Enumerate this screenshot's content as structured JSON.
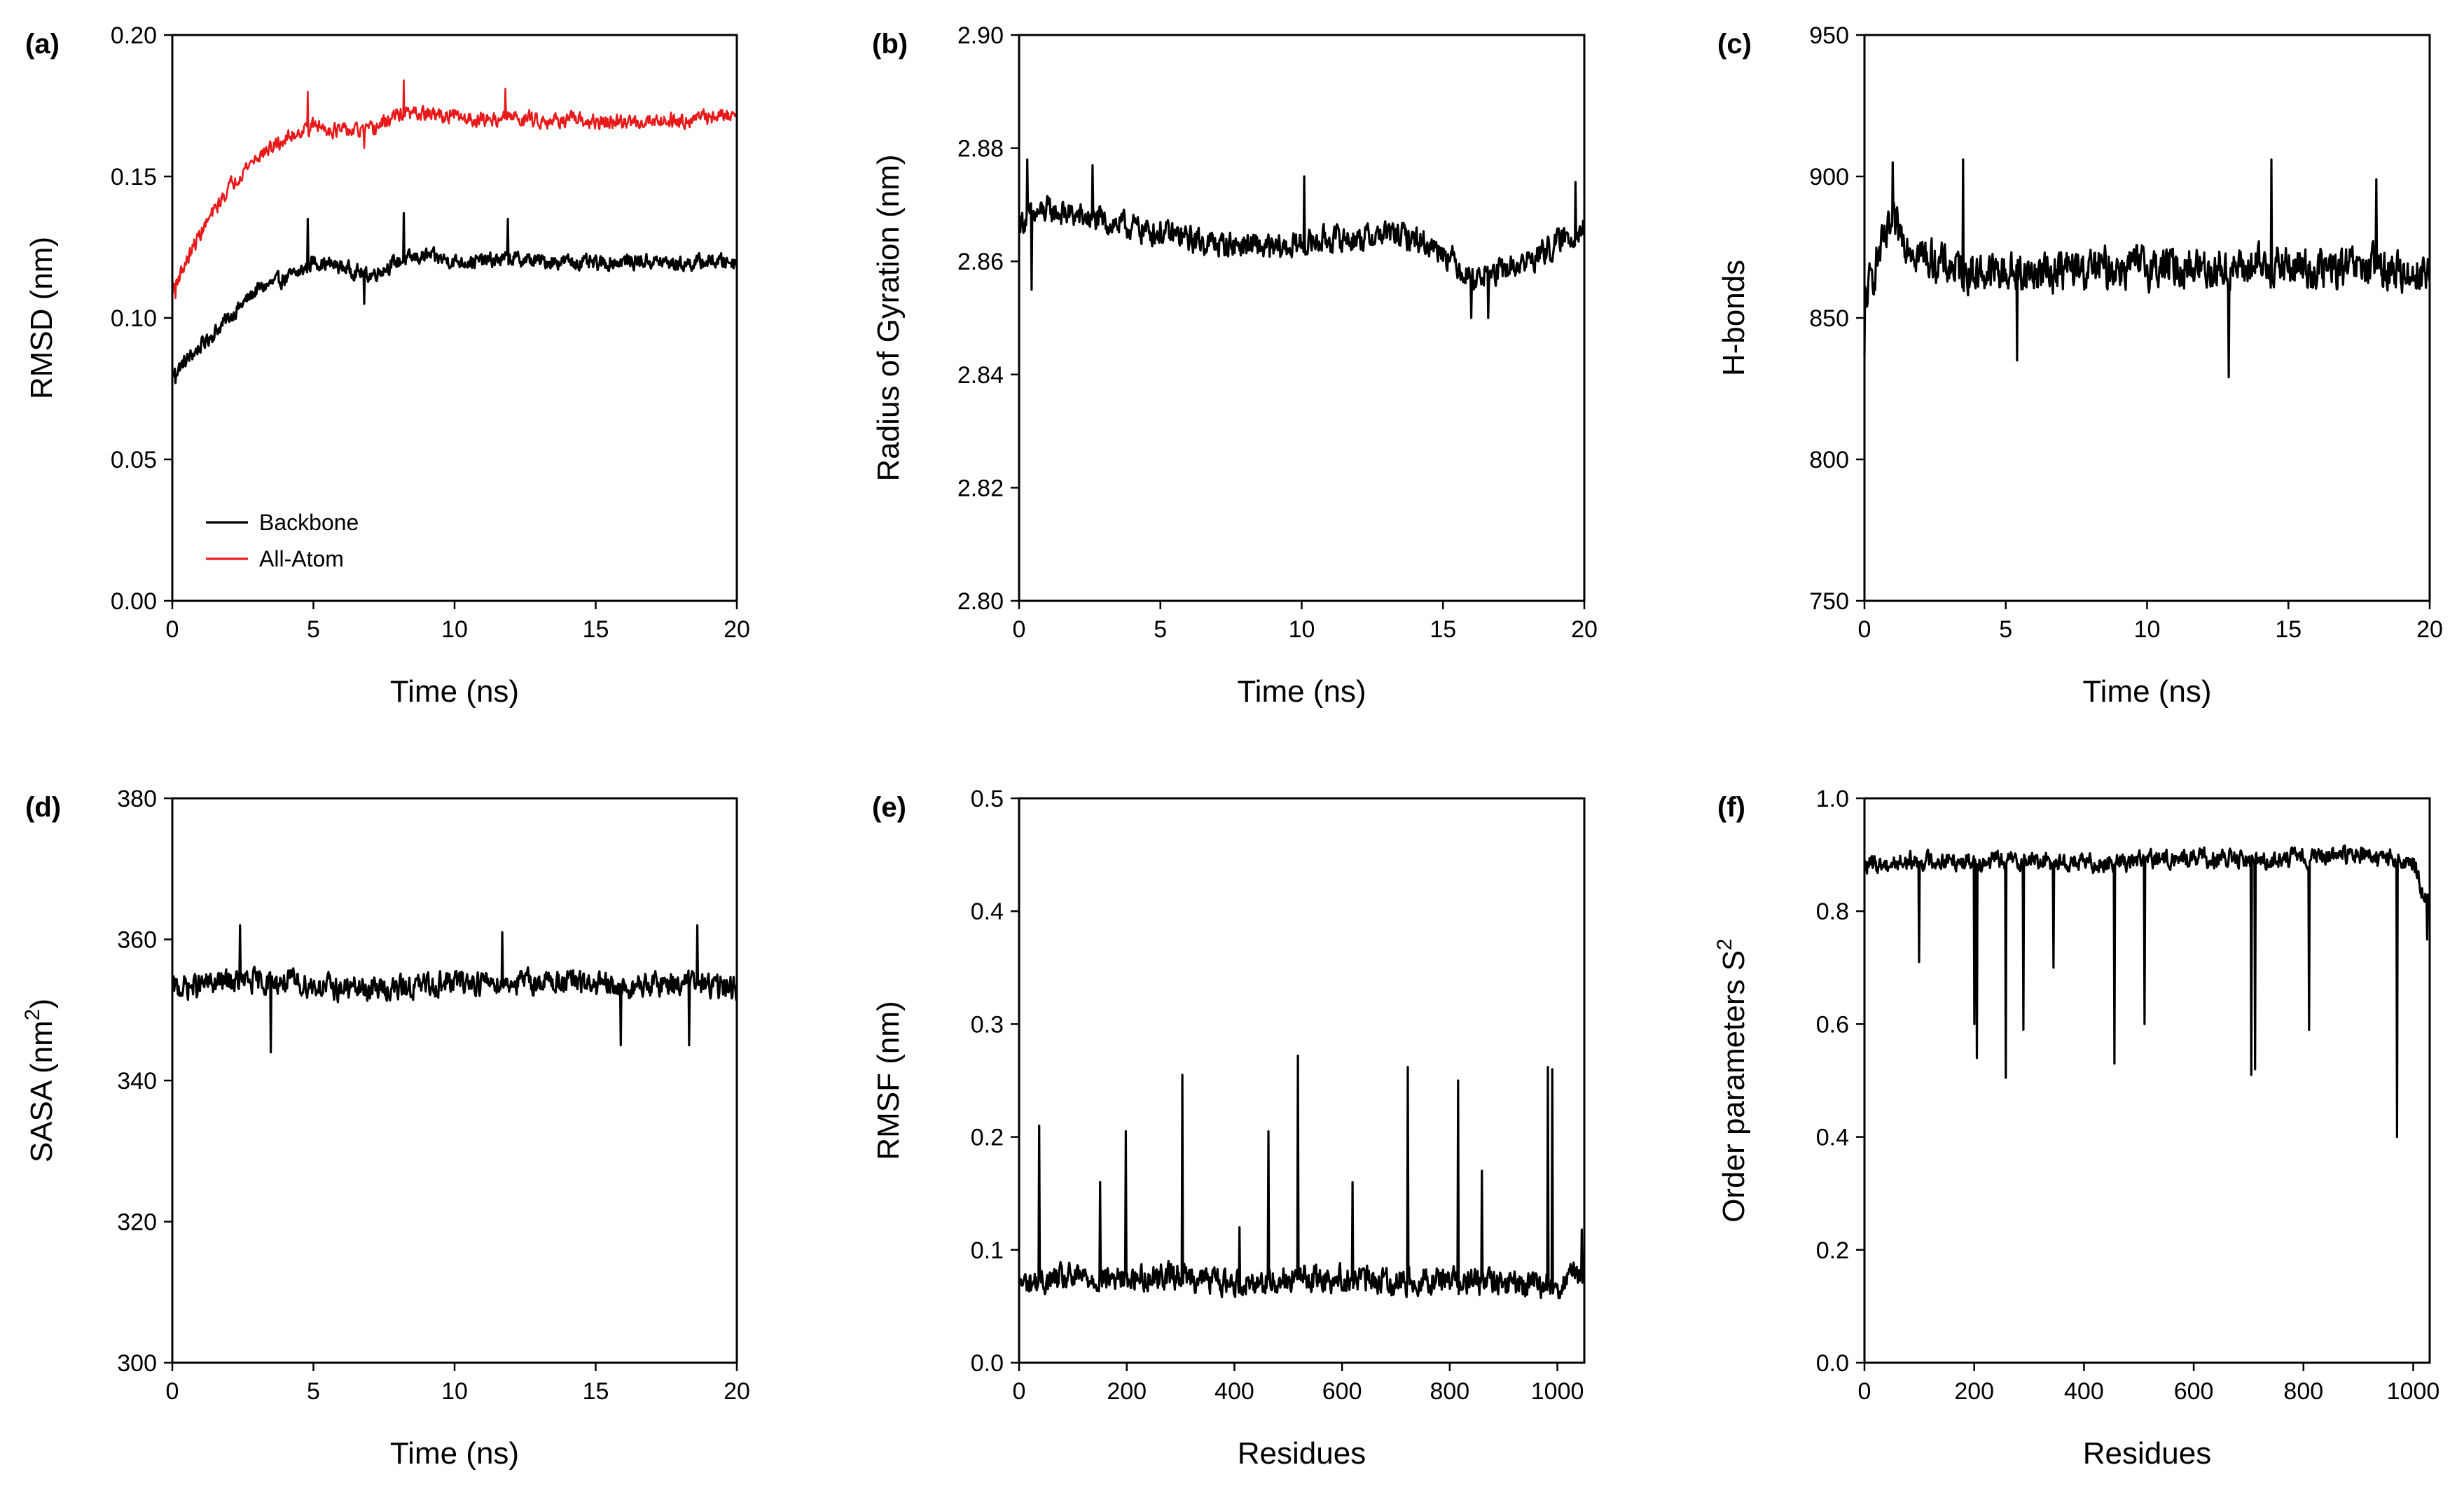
{
  "figure": {
    "panels": [
      "(a)",
      "(b)",
      "(c)",
      "(d)",
      "(e)",
      "(f)"
    ]
  },
  "chart_data": [
    {
      "id": "a",
      "panel_label": "(a)",
      "type": "line",
      "xlabel": "Time (ns)",
      "ylabel": "RMSD (nm)",
      "xlim": [
        0,
        20
      ],
      "ylim": [
        0.0,
        0.2
      ],
      "xticks": [
        0,
        5,
        10,
        15,
        20
      ],
      "xtick_labels": [
        "0",
        "5",
        "10",
        "15",
        "20"
      ],
      "yticks": [
        0.0,
        0.05,
        0.1,
        0.15,
        0.2
      ],
      "ytick_labels": [
        "0.00",
        "0.05",
        "0.10",
        "0.15",
        "0.20"
      ],
      "legend": {
        "placement": "lower-left",
        "entries": [
          "Backbone",
          "All-Atom"
        ]
      },
      "series": [
        {
          "name": "Backbone",
          "color": "#000000",
          "x": [
            0,
            0.5,
            1,
            1.5,
            2,
            2.5,
            3,
            3.5,
            4,
            4.5,
            5,
            6,
            7,
            8,
            9,
            10,
            11,
            12,
            13,
            14,
            15,
            16,
            17,
            18,
            19,
            20
          ],
          "y": [
            0.08,
            0.085,
            0.09,
            0.095,
            0.1,
            0.105,
            0.11,
            0.112,
            0.114,
            0.116,
            0.12,
            0.118,
            0.115,
            0.12,
            0.122,
            0.12,
            0.12,
            0.121,
            0.12,
            0.12,
            0.119,
            0.12,
            0.12,
            0.119,
            0.12,
            0.12
          ],
          "noise": 0.004,
          "peaks": [
            [
              4.8,
              0.135
            ],
            [
              8.2,
              0.137
            ],
            [
              11.9,
              0.135
            ],
            [
              1.5,
              0.093
            ],
            [
              0.1,
              0.077
            ],
            [
              6.8,
              0.105
            ]
          ]
        },
        {
          "name": "All-Atom",
          "color": "#e8191a",
          "x": [
            0,
            0.5,
            1,
            1.5,
            2,
            2.5,
            3,
            3.5,
            4,
            4.5,
            5,
            6,
            7,
            8,
            9,
            10,
            11,
            12,
            13,
            14,
            15,
            16,
            17,
            18,
            19,
            20
          ],
          "y": [
            0.11,
            0.12,
            0.13,
            0.138,
            0.146,
            0.152,
            0.157,
            0.16,
            0.163,
            0.166,
            0.168,
            0.166,
            0.166,
            0.172,
            0.172,
            0.171,
            0.17,
            0.171,
            0.17,
            0.17,
            0.169,
            0.169,
            0.17,
            0.17,
            0.171,
            0.172
          ],
          "noise": 0.004,
          "peaks": [
            [
              4.8,
              0.18
            ],
            [
              8.2,
              0.184
            ],
            [
              11.8,
              0.181
            ],
            [
              0.1,
              0.107
            ],
            [
              6.8,
              0.16
            ]
          ]
        }
      ]
    },
    {
      "id": "b",
      "panel_label": "(b)",
      "type": "line",
      "xlabel": "Time (ns)",
      "ylabel": "Radius of Gyration (nm)",
      "xlim": [
        0,
        20
      ],
      "ylim": [
        2.8,
        2.9
      ],
      "xticks": [
        0,
        5,
        10,
        15,
        20
      ],
      "xtick_labels": [
        "0",
        "5",
        "10",
        "15",
        "20"
      ],
      "yticks": [
        2.8,
        2.82,
        2.84,
        2.86,
        2.88,
        2.9
      ],
      "ytick_labels": [
        "2.80",
        "2.82",
        "2.84",
        "2.86",
        "2.88",
        "2.90"
      ],
      "series": [
        {
          "name": "Rg",
          "color": "#000000",
          "x": [
            0,
            1,
            2,
            3,
            4,
            5,
            6,
            7,
            8,
            9,
            10,
            11,
            12,
            13,
            14,
            15,
            16,
            17,
            18,
            19,
            20
          ],
          "y": [
            2.867,
            2.869,
            2.868,
            2.867,
            2.866,
            2.865,
            2.864,
            2.863,
            2.863,
            2.862,
            2.863,
            2.864,
            2.864,
            2.865,
            2.864,
            2.862,
            2.857,
            2.858,
            2.86,
            2.863,
            2.866
          ],
          "noise": 0.0035,
          "peaks": [
            [
              0.3,
              2.878
            ],
            [
              0.45,
              2.855
            ],
            [
              2.6,
              2.877
            ],
            [
              10.1,
              2.875
            ],
            [
              16.0,
              2.85
            ],
            [
              16.6,
              2.85
            ],
            [
              19.7,
              2.874
            ]
          ]
        }
      ]
    },
    {
      "id": "c",
      "panel_label": "(c)",
      "type": "line",
      "xlabel": "Time (ns)",
      "ylabel": "H-bonds",
      "xlim": [
        0,
        20
      ],
      "ylim": [
        750,
        950
      ],
      "xticks": [
        0,
        5,
        10,
        15,
        20
      ],
      "xtick_labels": [
        "0",
        "5",
        "10",
        "15",
        "20"
      ],
      "yticks": [
        750,
        800,
        850,
        900,
        950
      ],
      "ytick_labels": [
        "750",
        "800",
        "850",
        "900",
        "950"
      ],
      "series": [
        {
          "name": "H-bonds",
          "color": "#000000",
          "x": [
            0,
            0.5,
            1,
            1.5,
            2,
            3,
            4,
            5,
            6,
            7,
            8,
            9,
            10,
            11,
            12,
            13,
            14,
            15,
            16,
            17,
            18,
            19,
            20
          ],
          "y": [
            855,
            872,
            882,
            878,
            872,
            868,
            866,
            866,
            866,
            867,
            867,
            868,
            868,
            868,
            868,
            867,
            868,
            868,
            867,
            867,
            868,
            866,
            866
          ],
          "noise": 11,
          "peaks": [
            [
              0.0,
              837
            ],
            [
              1.0,
              905
            ],
            [
              3.5,
              906
            ],
            [
              14.4,
              906
            ],
            [
              12.9,
              829
            ],
            [
              5.4,
              835
            ],
            [
              18.1,
              899
            ]
          ]
        }
      ]
    },
    {
      "id": "d",
      "panel_label": "(d)",
      "type": "line",
      "xlabel": "Time (ns)",
      "ylabel": "SASA (nm",
      "ylabel_sup": "2",
      "ylabel_tail": ")",
      "xlim": [
        0,
        20
      ],
      "ylim": [
        300,
        380
      ],
      "xticks": [
        0,
        5,
        10,
        15,
        20
      ],
      "xtick_labels": [
        "0",
        "5",
        "10",
        "15",
        "20"
      ],
      "yticks": [
        300,
        320,
        340,
        360,
        380
      ],
      "ytick_labels": [
        "300",
        "320",
        "340",
        "360",
        "380"
      ],
      "series": [
        {
          "name": "SASA",
          "color": "#000000",
          "x": [
            0,
            2,
            4,
            6,
            8,
            10,
            12,
            14,
            16,
            18,
            20
          ],
          "y": [
            353,
            354,
            354,
            353,
            353,
            354,
            354,
            354,
            353,
            354,
            353
          ],
          "noise": 2.6,
          "peaks": [
            [
              2.4,
              362
            ],
            [
              3.5,
              344
            ],
            [
              11.7,
              361
            ],
            [
              15.9,
              345
            ],
            [
              18.3,
              345
            ],
            [
              18.6,
              362
            ]
          ]
        }
      ]
    },
    {
      "id": "e",
      "panel_label": "(e)",
      "type": "line",
      "xlabel": "Residues",
      "ylabel": "RMSF (nm)",
      "xlim": [
        0,
        1050
      ],
      "ylim": [
        0.0,
        0.5
      ],
      "xticks": [
        0,
        200,
        400,
        600,
        800,
        1000
      ],
      "xtick_labels": [
        "0",
        "200",
        "400",
        "600",
        "800",
        "1000"
      ],
      "yticks": [
        0.0,
        0.1,
        0.2,
        0.3,
        0.4,
        0.5
      ],
      "ytick_labels": [
        "0.0",
        "0.1",
        "0.2",
        "0.3",
        "0.4",
        "0.5"
      ],
      "series": [
        {
          "name": "RMSF",
          "color": "#000000",
          "x": [
            0,
            100,
            200,
            300,
            400,
            500,
            600,
            700,
            800,
            900,
            1000,
            1050
          ],
          "y": [
            0.07,
            0.075,
            0.075,
            0.078,
            0.07,
            0.075,
            0.075,
            0.072,
            0.075,
            0.07,
            0.068,
            0.08
          ],
          "noise": 0.018,
          "peaks": [
            [
              37,
              0.21
            ],
            [
              198,
              0.205
            ],
            [
              303,
              0.255
            ],
            [
              463,
              0.205
            ],
            [
              518,
              0.272
            ],
            [
              722,
              0.262
            ],
            [
              815,
              0.25
            ],
            [
              982,
              0.262
            ],
            [
              990,
              0.26
            ],
            [
              150,
              0.16
            ],
            [
              620,
              0.16
            ],
            [
              860,
              0.17
            ],
            [
              410,
              0.12
            ],
            [
              1045,
              0.118
            ]
          ]
        }
      ]
    },
    {
      "id": "f",
      "panel_label": "(f)",
      "type": "line",
      "xlabel": "Residues",
      "ylabel": "Order parameters S",
      "ylabel_sup": "2",
      "ylabel_tail": "",
      "xlim": [
        0,
        1030
      ],
      "ylim": [
        0.0,
        1.0
      ],
      "xticks": [
        0,
        200,
        400,
        600,
        800,
        1000
      ],
      "xtick_labels": [
        "0",
        "200",
        "400",
        "600",
        "800",
        "1000"
      ],
      "yticks": [
        0.0,
        0.2,
        0.4,
        0.6,
        0.8,
        1.0
      ],
      "ytick_labels": [
        "0.0",
        "0.2",
        "0.4",
        "0.6",
        "0.8",
        "1.0"
      ],
      "series": [
        {
          "name": "S2",
          "color": "#000000",
          "x": [
            0,
            100,
            200,
            300,
            400,
            500,
            600,
            700,
            800,
            900,
            1000,
            1030
          ],
          "y": [
            0.88,
            0.89,
            0.89,
            0.89,
            0.885,
            0.89,
            0.895,
            0.89,
            0.895,
            0.9,
            0.885,
            0.8
          ],
          "noise": 0.025,
          "peaks": [
            [
              100,
              0.71
            ],
            [
              200,
              0.6
            ],
            [
              205,
              0.54
            ],
            [
              258,
              0.505
            ],
            [
              290,
              0.59
            ],
            [
              345,
              0.7
            ],
            [
              455,
              0.53
            ],
            [
              510,
              0.6
            ],
            [
              705,
              0.51
            ],
            [
              712,
              0.52
            ],
            [
              810,
              0.59
            ],
            [
              970,
              0.4
            ],
            [
              1025,
              0.75
            ]
          ]
        }
      ]
    }
  ]
}
